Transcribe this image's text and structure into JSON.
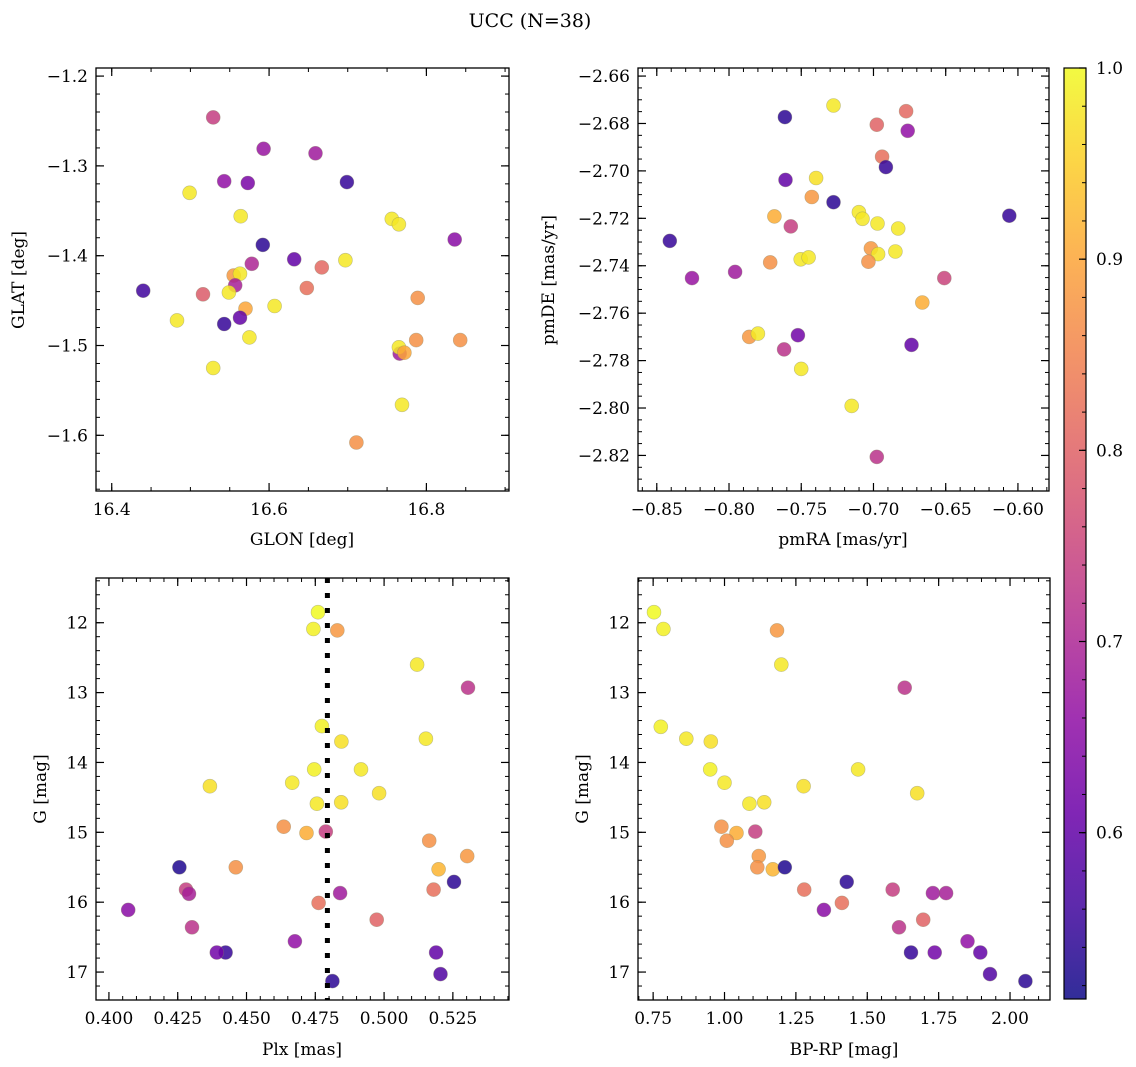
{
  "figure": {
    "title": "UCC (N=38)"
  },
  "colorbar": {
    "range": [
      0.513,
      1.0
    ],
    "ticks": [
      0.6,
      0.7,
      0.8,
      0.9,
      1.0
    ],
    "tick_labels": [
      "0.6",
      "0.7",
      "0.8",
      "0.9",
      "1.0"
    ],
    "minor_step": 0.02,
    "colormap": "plasma"
  },
  "chart_data": [
    {
      "type": "scatter",
      "id": "glon-glat",
      "xlabel": "GLON [deg]",
      "ylabel": "GLAT [deg]",
      "xlim": [
        16.38,
        16.905
      ],
      "ylim": [
        -1.662,
        -1.191
      ],
      "xticks": [
        16.4,
        16.6,
        16.8
      ],
      "xtick_labels": [
        "16.4",
        "16.6",
        "16.8"
      ],
      "x_minor_step": 0.05,
      "yticks": [
        -1.6,
        -1.5,
        -1.4,
        -1.3,
        -1.2
      ],
      "ytick_labels": [
        "−1.6",
        "−1.5",
        "−1.4",
        "−1.3",
        "−1.2"
      ],
      "y_minor_step": 0.02,
      "y_inverted": false,
      "grid": false,
      "points": [
        [
          16.529,
          -1.246,
          0.74
        ],
        [
          16.593,
          -1.281,
          0.67
        ],
        [
          16.659,
          -1.286,
          0.68
        ],
        [
          16.543,
          -1.317,
          0.66
        ],
        [
          16.573,
          -1.319,
          0.63
        ],
        [
          16.699,
          -1.318,
          0.55
        ],
        [
          16.499,
          -1.33,
          0.98
        ],
        [
          16.564,
          -1.356,
          0.98
        ],
        [
          16.756,
          -1.359,
          0.98
        ],
        [
          16.765,
          -1.365,
          0.98
        ],
        [
          16.836,
          -1.382,
          0.65
        ],
        [
          16.592,
          -1.388,
          0.54
        ],
        [
          16.632,
          -1.404,
          0.6
        ],
        [
          16.697,
          -1.405,
          0.98
        ],
        [
          16.578,
          -1.409,
          0.7
        ],
        [
          16.667,
          -1.413,
          0.81
        ],
        [
          16.555,
          -1.422,
          0.88
        ],
        [
          16.563,
          -1.42,
          0.98
        ],
        [
          16.44,
          -1.439,
          0.56
        ],
        [
          16.557,
          -1.433,
          0.69
        ],
        [
          16.516,
          -1.443,
          0.79
        ],
        [
          16.648,
          -1.436,
          0.82
        ],
        [
          16.549,
          -1.441,
          0.98
        ],
        [
          16.789,
          -1.447,
          0.87
        ],
        [
          16.607,
          -1.456,
          0.98
        ],
        [
          16.57,
          -1.459,
          0.9
        ],
        [
          16.483,
          -1.472,
          0.98
        ],
        [
          16.543,
          -1.476,
          0.55
        ],
        [
          16.563,
          -1.469,
          0.6
        ],
        [
          16.575,
          -1.491,
          0.98
        ],
        [
          16.787,
          -1.494,
          0.87
        ],
        [
          16.843,
          -1.494,
          0.87
        ],
        [
          16.766,
          -1.509,
          0.68
        ],
        [
          16.765,
          -1.502,
          0.98
        ],
        [
          16.772,
          -1.508,
          0.9
        ],
        [
          16.529,
          -1.525,
          0.98
        ],
        [
          16.769,
          -1.566,
          0.98
        ],
        [
          16.711,
          -1.608,
          0.87
        ]
      ]
    },
    {
      "type": "scatter",
      "id": "pmra-pmde",
      "xlabel": "pmRA [mas/yr]",
      "ylabel": "pmDE [mas/yr]",
      "xlim": [
        -0.863,
        -0.5785
      ],
      "ylim": [
        -2.835,
        -2.6566
      ],
      "xticks": [
        -0.85,
        -0.8,
        -0.75,
        -0.7,
        -0.65,
        -0.6
      ],
      "xtick_labels": [
        "−0.85",
        "−0.80",
        "−0.75",
        "−0.70",
        "−0.65",
        "−0.60"
      ],
      "x_minor_step": 0.01,
      "yticks": [
        -2.82,
        -2.8,
        -2.78,
        -2.76,
        -2.74,
        -2.72,
        -2.7,
        -2.68,
        -2.66
      ],
      "ytick_labels": [
        "−2.82",
        "−2.80",
        "−2.78",
        "−2.76",
        "−2.74",
        "−2.72",
        "−2.70",
        "−2.68",
        "−2.66"
      ],
      "y_minor_step": 0.005,
      "y_inverted": false,
      "grid": false,
      "points": [
        [
          -0.7277,
          -2.6724,
          0.98
        ],
        [
          -0.7613,
          -2.6773,
          0.54
        ],
        [
          -0.6774,
          -2.6748,
          0.81
        ],
        [
          -0.6977,
          -2.6805,
          0.8
        ],
        [
          -0.6763,
          -2.6831,
          0.66
        ],
        [
          -0.694,
          -2.694,
          0.82
        ],
        [
          -0.6914,
          -2.6984,
          0.55
        ],
        [
          -0.7609,
          -2.7038,
          0.6
        ],
        [
          -0.7397,
          -2.703,
          0.97
        ],
        [
          -0.7427,
          -2.711,
          0.88
        ],
        [
          -0.7277,
          -2.7132,
          0.54
        ],
        [
          -0.7101,
          -2.7174,
          0.98
        ],
        [
          -0.7076,
          -2.7202,
          0.98
        ],
        [
          -0.6972,
          -2.7222,
          0.98
        ],
        [
          -0.6829,
          -2.7243,
          0.98
        ],
        [
          -0.7686,
          -2.7192,
          0.91
        ],
        [
          -0.7572,
          -2.7234,
          0.74
        ],
        [
          -0.606,
          -2.7189,
          0.55
        ],
        [
          -0.841,
          -2.7295,
          0.55
        ],
        [
          -0.7018,
          -2.7327,
          0.88
        ],
        [
          -0.6968,
          -2.7351,
          0.98
        ],
        [
          -0.6848,
          -2.734,
          0.98
        ],
        [
          -0.7504,
          -2.7373,
          0.98
        ],
        [
          -0.7449,
          -2.7365,
          0.98
        ],
        [
          -0.7035,
          -2.7383,
          0.87
        ],
        [
          -0.7715,
          -2.7386,
          0.87
        ],
        [
          -0.7958,
          -2.7426,
          0.68
        ],
        [
          -0.8256,
          -2.7452,
          0.67
        ],
        [
          -0.651,
          -2.7452,
          0.75
        ],
        [
          -0.6662,
          -2.7555,
          0.91
        ],
        [
          -0.786,
          -2.77,
          0.88
        ],
        [
          -0.78,
          -2.7686,
          0.98
        ],
        [
          -0.7523,
          -2.7693,
          0.62
        ],
        [
          -0.7619,
          -2.7753,
          0.72
        ],
        [
          -0.6737,
          -2.7734,
          0.6
        ],
        [
          -0.75,
          -2.7835,
          0.98
        ],
        [
          -0.7151,
          -2.7991,
          0.98
        ],
        [
          -0.6977,
          -2.8206,
          0.72
        ]
      ]
    },
    {
      "type": "scatter",
      "id": "plx-g",
      "xlabel": "Plx [mas]",
      "ylabel": "G [mag]",
      "xlim": [
        0.3953,
        0.5454
      ],
      "ylim": [
        17.4,
        11.36
      ],
      "xticks": [
        0.4,
        0.425,
        0.45,
        0.475,
        0.5,
        0.525
      ],
      "xtick_labels": [
        "0.400",
        "0.425",
        "0.450",
        "0.475",
        "0.500",
        "0.525"
      ],
      "x_minor_step": 0.005,
      "yticks": [
        12,
        13,
        14,
        15,
        16,
        17
      ],
      "ytick_labels": [
        "12",
        "13",
        "14",
        "15",
        "16",
        "17"
      ],
      "y_minor_step": 0.2,
      "y_inverted": true,
      "grid": false,
      "vline": {
        "x": 0.4794,
        "style": "dotted",
        "color": "#000000"
      },
      "points": [
        [
          0.476,
          11.85,
          1.0
        ],
        [
          0.4743,
          12.09,
          0.99
        ],
        [
          0.483,
          12.11,
          0.88
        ],
        [
          0.512,
          12.6,
          0.98
        ],
        [
          0.5305,
          12.93,
          0.72
        ],
        [
          0.4774,
          13.48,
          0.99
        ],
        [
          0.5152,
          13.66,
          0.98
        ],
        [
          0.4845,
          13.7,
          0.97
        ],
        [
          0.4746,
          14.1,
          0.99
        ],
        [
          0.4916,
          14.1,
          0.98
        ],
        [
          0.4666,
          14.29,
          0.98
        ],
        [
          0.4367,
          14.34,
          0.97
        ],
        [
          0.4982,
          14.44,
          0.97
        ],
        [
          0.4756,
          14.59,
          0.98
        ],
        [
          0.4844,
          14.57,
          0.97
        ],
        [
          0.4635,
          14.92,
          0.87
        ],
        [
          0.4718,
          15.01,
          0.91
        ],
        [
          0.4788,
          14.99,
          0.74
        ],
        [
          0.5164,
          15.12,
          0.87
        ],
        [
          0.5302,
          15.34,
          0.88
        ],
        [
          0.4461,
          15.5,
          0.87
        ],
        [
          0.5198,
          15.53,
          0.92
        ],
        [
          0.4256,
          15.5,
          0.53
        ],
        [
          0.5254,
          15.71,
          0.54
        ],
        [
          0.518,
          15.82,
          0.82
        ],
        [
          0.428,
          15.82,
          0.74
        ],
        [
          0.484,
          15.87,
          0.68
        ],
        [
          0.4291,
          15.88,
          0.69
        ],
        [
          0.4762,
          16.01,
          0.82
        ],
        [
          0.407,
          16.11,
          0.65
        ],
        [
          0.4973,
          16.25,
          0.8
        ],
        [
          0.4302,
          16.36,
          0.72
        ],
        [
          0.4676,
          16.56,
          0.66
        ],
        [
          0.4424,
          16.72,
          0.55
        ],
        [
          0.4392,
          16.72,
          0.62
        ],
        [
          0.5189,
          16.72,
          0.6
        ],
        [
          0.5205,
          17.03,
          0.58
        ],
        [
          0.4812,
          17.13,
          0.54
        ]
      ]
    },
    {
      "type": "scatter",
      "id": "bprp-g",
      "xlabel": "BP-RP [mag]",
      "ylabel": "G [mag]",
      "xlim": [
        0.697,
        2.14
      ],
      "ylim": [
        17.4,
        11.36
      ],
      "xticks": [
        0.75,
        1.0,
        1.25,
        1.5,
        1.75,
        2.0
      ],
      "xtick_labels": [
        "0.75",
        "1.00",
        "1.25",
        "1.50",
        "1.75",
        "2.00"
      ],
      "x_minor_step": 0.05,
      "yticks": [
        12,
        13,
        14,
        15,
        16,
        17
      ],
      "ytick_labels": [
        "12",
        "13",
        "14",
        "15",
        "16",
        "17"
      ],
      "y_minor_step": 0.2,
      "y_inverted": true,
      "grid": false,
      "points": [
        [
          0.753,
          11.85,
          1.0
        ],
        [
          0.786,
          12.09,
          0.99
        ],
        [
          1.184,
          12.11,
          0.88
        ],
        [
          1.199,
          12.6,
          0.98
        ],
        [
          1.631,
          12.93,
          0.72
        ],
        [
          0.777,
          13.49,
          0.99
        ],
        [
          0.866,
          13.66,
          0.98
        ],
        [
          0.952,
          13.7,
          0.97
        ],
        [
          0.95,
          14.1,
          0.99
        ],
        [
          1.468,
          14.1,
          0.98
        ],
        [
          1.0,
          14.29,
          0.98
        ],
        [
          1.277,
          14.34,
          0.97
        ],
        [
          1.675,
          14.44,
          0.97
        ],
        [
          1.087,
          14.59,
          0.98
        ],
        [
          1.139,
          14.57,
          0.97
        ],
        [
          0.989,
          14.92,
          0.87
        ],
        [
          1.042,
          15.01,
          0.91
        ],
        [
          1.108,
          14.99,
          0.74
        ],
        [
          1.008,
          15.12,
          0.87
        ],
        [
          1.12,
          15.34,
          0.88
        ],
        [
          1.115,
          15.5,
          0.87
        ],
        [
          1.169,
          15.53,
          0.92
        ],
        [
          1.211,
          15.5,
          0.53
        ],
        [
          1.428,
          15.71,
          0.54
        ],
        [
          1.279,
          15.82,
          0.82
        ],
        [
          1.589,
          15.82,
          0.74
        ],
        [
          1.73,
          15.87,
          0.68
        ],
        [
          1.776,
          15.87,
          0.69
        ],
        [
          1.411,
          16.01,
          0.82
        ],
        [
          1.348,
          16.11,
          0.65
        ],
        [
          1.696,
          16.25,
          0.8
        ],
        [
          1.611,
          16.36,
          0.72
        ],
        [
          1.851,
          16.56,
          0.66
        ],
        [
          1.653,
          16.72,
          0.55
        ],
        [
          1.736,
          16.72,
          0.62
        ],
        [
          1.896,
          16.72,
          0.6
        ],
        [
          1.93,
          17.03,
          0.58
        ],
        [
          2.054,
          17.13,
          0.54
        ]
      ]
    }
  ]
}
